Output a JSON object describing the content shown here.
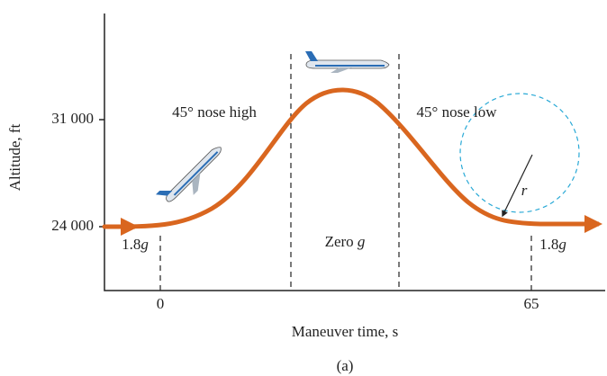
{
  "axes": {
    "y_label": "Altitude, ft",
    "x_label": "Maneuver time, s",
    "y_ticks": [
      "31 000",
      "24 000"
    ],
    "x_ticks": [
      "0",
      "65"
    ]
  },
  "annotations": {
    "phase_left": "45° nose high",
    "phase_right": "45° nose low",
    "zero_g": {
      "text": "Zero",
      "symbol": "g"
    },
    "load_left": {
      "value": "1.8",
      "symbol": "g"
    },
    "load_right": {
      "value": "1.8",
      "symbol": "g"
    },
    "radius": "r"
  },
  "caption": "(a)"
}
